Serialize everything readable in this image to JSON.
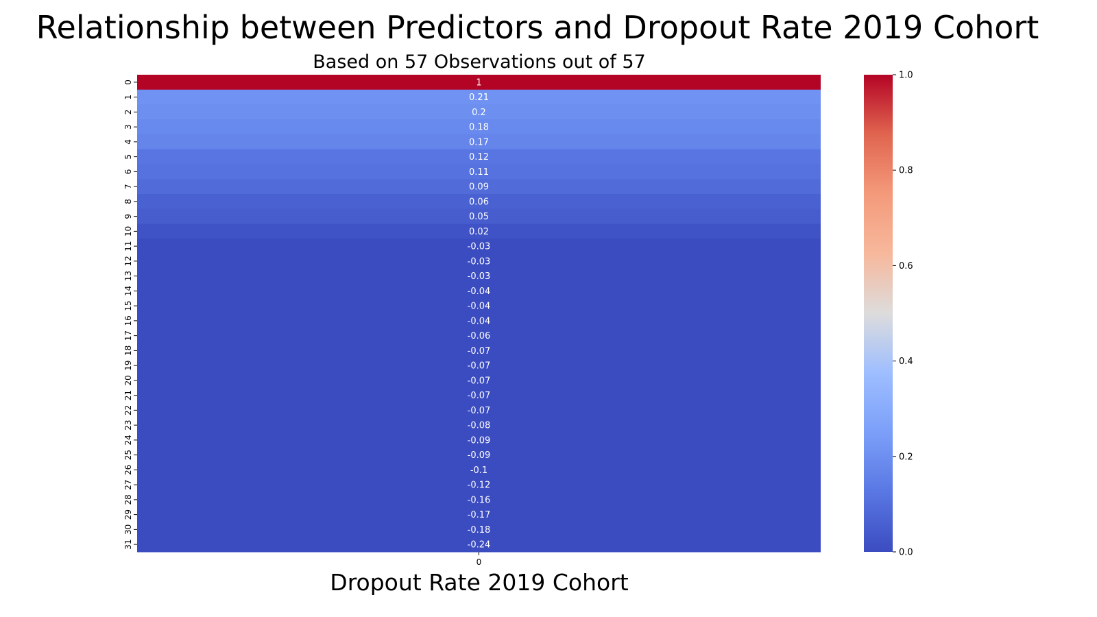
{
  "chart_data": {
    "type": "heatmap",
    "title": "Relationship between Predictors and Dropout Rate 2019 Cohort",
    "subtitle": "Based on 57 Observations out of 57",
    "xlabel": "Dropout Rate 2019 Cohort",
    "ylabel": "",
    "colormap": "coolwarm",
    "columns": [
      "0"
    ],
    "rows": [
      "0",
      "1",
      "2",
      "3",
      "4",
      "5",
      "6",
      "7",
      "8",
      "9",
      "10",
      "11",
      "12",
      "13",
      "14",
      "15",
      "16",
      "17",
      "18",
      "19",
      "20",
      "21",
      "22",
      "23",
      "24",
      "25",
      "26",
      "27",
      "28",
      "29",
      "30",
      "31"
    ],
    "values": [
      1,
      0.21,
      0.2,
      0.18,
      0.17,
      0.12,
      0.11,
      0.09,
      0.06,
      0.05,
      0.02,
      -0.03,
      -0.03,
      -0.03,
      -0.04,
      -0.04,
      -0.04,
      -0.06,
      -0.07,
      -0.07,
      -0.07,
      -0.07,
      -0.07,
      -0.08,
      -0.09,
      -0.09,
      -0.1,
      -0.12,
      -0.16,
      -0.17,
      -0.18,
      -0.24
    ],
    "annotations": [
      "1",
      "0.21",
      "0.2",
      "0.18",
      "0.17",
      "0.12",
      "0.11",
      "0.09",
      "0.06",
      "0.05",
      "0.02",
      "-0.03",
      "-0.03",
      "-0.03",
      "-0.04",
      "-0.04",
      "-0.04",
      "-0.06",
      "-0.07",
      "-0.07",
      "-0.07",
      "-0.07",
      "-0.07",
      "-0.08",
      "-0.09",
      "-0.09",
      "-0.1",
      "-0.12",
      "-0.16",
      "-0.17",
      "-0.18",
      "-0.24"
    ],
    "colorbar": {
      "vmin": 0,
      "vmax": 1,
      "ticks": [
        0.0,
        0.2,
        0.4,
        0.6,
        0.8,
        1.0
      ],
      "tick_labels": [
        "0.0",
        "0.2",
        "0.4",
        "0.6",
        "0.8",
        "1.0"
      ]
    },
    "legend": "colorbar at right"
  }
}
